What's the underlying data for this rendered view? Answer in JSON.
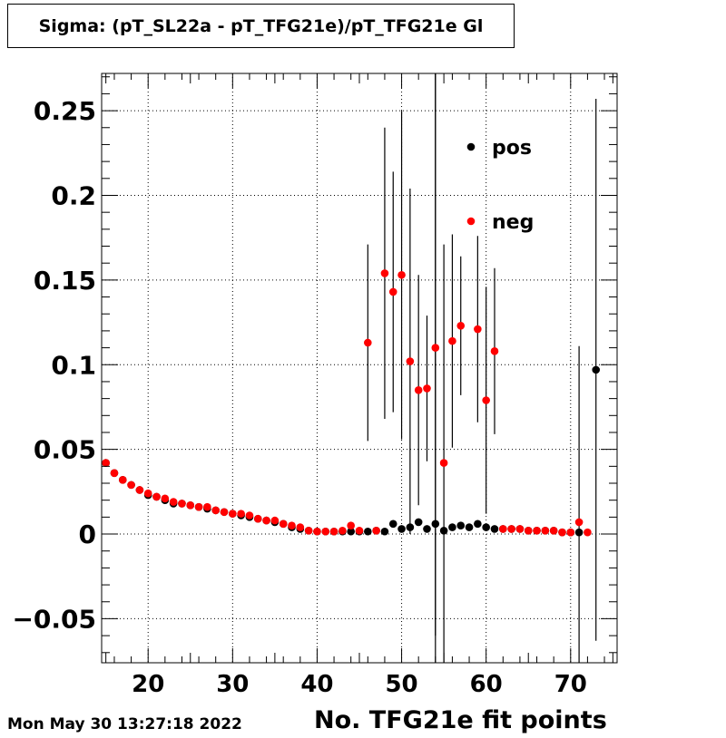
{
  "header": {
    "title": "Sigma: (pT_SL22a - pT_TFG21e)/pT_TFG21e Gl"
  },
  "footer": {
    "timestamp": "Mon May 30 13:27:18 2022"
  },
  "chart_data": {
    "type": "scatter",
    "title": "Sigma: (pT_SL22a - pT_TFG21e)/pT_TFG21e Gl",
    "xlabel": "No. TFG21e fit points",
    "ylabel": "",
    "xlim": [
      14.5,
      75.5
    ],
    "ylim": [
      -0.076,
      0.272
    ],
    "grid": true,
    "legend_position": "top-right",
    "x_ticks": [
      20,
      30,
      40,
      50,
      60,
      70
    ],
    "x_tick_labels": [
      "20",
      "30",
      "40",
      "50",
      "60",
      "70"
    ],
    "y_ticks": [
      -0.05,
      0,
      0.05,
      0.1,
      0.15,
      0.2,
      0.25
    ],
    "y_tick_labels": [
      "−0.05",
      "0",
      "0.05",
      "0.1",
      "0.15",
      "0.2",
      "0.25"
    ],
    "series": [
      {
        "name": "pos",
        "color": "#000000",
        "x": [
          15,
          16,
          17,
          18,
          19,
          20,
          21,
          22,
          23,
          24,
          25,
          26,
          27,
          28,
          29,
          30,
          31,
          32,
          33,
          34,
          35,
          36,
          37,
          38,
          39,
          40,
          41,
          42,
          43,
          44,
          45,
          46,
          47,
          48,
          49,
          50,
          51,
          52,
          53,
          54,
          55,
          56,
          57,
          58,
          59,
          60,
          61,
          62,
          63,
          64,
          65,
          66,
          67,
          68,
          69,
          70,
          71,
          73
        ],
        "y": [
          0.042,
          0.036,
          0.032,
          0.029,
          0.026,
          0.023,
          0.022,
          0.02,
          0.018,
          0.018,
          0.017,
          0.016,
          0.015,
          0.014,
          0.013,
          0.012,
          0.011,
          0.01,
          0.009,
          0.008,
          0.007,
          0.006,
          0.004,
          0.003,
          0.002,
          0.0015,
          0.0015,
          0.0015,
          0.0015,
          0.0015,
          0.0015,
          0.0015,
          0.002,
          0.0015,
          0.006,
          0.003,
          0.004,
          0.007,
          0.003,
          0.006,
          0.002,
          0.004,
          0.005,
          0.004,
          0.006,
          0.004,
          0.003,
          0.003,
          0.003,
          0.003,
          0.002,
          0.002,
          0.002,
          0.002,
          0.001,
          0.001,
          0.001,
          0.097
        ],
        "err": [
          0,
          0,
          0,
          0,
          0,
          0,
          0,
          0,
          0,
          0,
          0,
          0,
          0,
          0,
          0,
          0,
          0,
          0,
          0,
          0,
          0,
          0,
          0,
          0,
          0,
          0,
          0,
          0,
          0,
          0,
          0,
          0,
          0,
          0,
          0,
          0,
          0,
          0,
          0,
          0.29,
          0,
          0,
          0,
          0,
          0,
          0,
          0,
          0,
          0,
          0,
          0,
          0,
          0,
          0,
          0,
          0,
          0.11,
          0.16
        ]
      },
      {
        "name": "neg",
        "color": "#ff0000",
        "x": [
          15,
          16,
          17,
          18,
          19,
          20,
          21,
          22,
          23,
          24,
          25,
          26,
          27,
          28,
          29,
          30,
          31,
          32,
          33,
          34,
          35,
          36,
          37,
          38,
          39,
          40,
          41,
          42,
          43,
          44,
          45,
          46,
          47,
          48,
          49,
          50,
          51,
          52,
          53,
          54,
          55,
          56,
          57,
          59,
          60,
          61,
          62,
          63,
          64,
          65,
          66,
          67,
          68,
          69,
          70,
          71,
          72
        ],
        "y": [
          0.042,
          0.036,
          0.032,
          0.029,
          0.026,
          0.024,
          0.022,
          0.021,
          0.019,
          0.018,
          0.017,
          0.016,
          0.016,
          0.014,
          0.013,
          0.012,
          0.012,
          0.011,
          0.009,
          0.008,
          0.008,
          0.006,
          0.005,
          0.004,
          0.002,
          0.0015,
          0.0015,
          0.0015,
          0.002,
          0.005,
          0.002,
          0.113,
          0.002,
          0.154,
          0.143,
          0.153,
          0.102,
          0.085,
          0.086,
          0.11,
          0.042,
          0.114,
          0.123,
          0.121,
          0.079,
          0.108,
          0.003,
          0.003,
          0.003,
          0.002,
          0.002,
          0.002,
          0.002,
          0.001,
          0.001,
          0.007,
          0.001
        ],
        "err": [
          0,
          0,
          0,
          0,
          0,
          0,
          0,
          0,
          0,
          0,
          0,
          0,
          0,
          0,
          0,
          0,
          0,
          0,
          0,
          0,
          0,
          0,
          0,
          0,
          0,
          0,
          0,
          0,
          0,
          0,
          0,
          0.058,
          0,
          0.086,
          0.071,
          0.097,
          0.102,
          0.068,
          0.043,
          0.17,
          0.129,
          0.063,
          0.041,
          0.055,
          0.067,
          0.049,
          0,
          0,
          0,
          0,
          0,
          0,
          0,
          0,
          0,
          0,
          0
        ]
      }
    ]
  }
}
